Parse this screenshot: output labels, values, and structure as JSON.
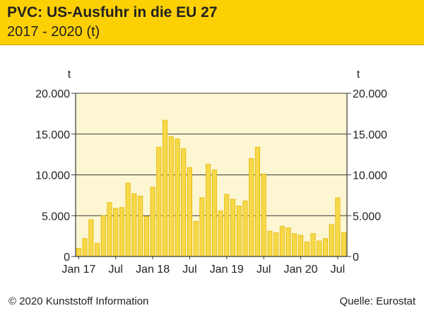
{
  "header": {
    "title": "PVC: US-Ausfuhr in die EU 27",
    "subtitle": "2017 - 2020 (t)"
  },
  "footer": {
    "copyright": "© 2020 Kunststoff Information",
    "source": "Quelle: Eurostat"
  },
  "colors": {
    "header_bg": "#fcd003",
    "plot_bg": "#fdf6d2",
    "bar_fill": "#f7d84a",
    "bar_stroke": "#e2b800"
  },
  "chart_data": {
    "type": "bar",
    "title": "PVC: US-Ausfuhr in die EU 27",
    "subtitle": "2017 - 2020 (t)",
    "ylabel_left": "t",
    "ylabel_right": "t",
    "ylim": [
      0,
      20000
    ],
    "yticks": [
      0,
      5000,
      10000,
      15000,
      20000
    ],
    "ytick_labels": [
      "0",
      "5.000",
      "10.000",
      "15.000",
      "20.000"
    ],
    "xtick_labels": [
      "Jan 17",
      "Jul",
      "Jan 18",
      "Jul",
      "Jan 19",
      "Jul",
      "Jan 20",
      "Jul"
    ],
    "grid": true,
    "categories": [
      "Jan 17",
      "Feb 17",
      "Mar 17",
      "Apr 17",
      "May 17",
      "Jun 17",
      "Jul 17",
      "Aug 17",
      "Sep 17",
      "Oct 17",
      "Nov 17",
      "Dec 17",
      "Jan 18",
      "Feb 18",
      "Mar 18",
      "Apr 18",
      "May 18",
      "Jun 18",
      "Jul 18",
      "Aug 18",
      "Sep 18",
      "Oct 18",
      "Nov 18",
      "Dec 18",
      "Jan 19",
      "Feb 19",
      "Mar 19",
      "Apr 19",
      "May 19",
      "Jun 19",
      "Jul 19",
      "Aug 19",
      "Sep 19",
      "Oct 19",
      "Nov 19",
      "Dec 19",
      "Jan 20",
      "Feb 20",
      "Mar 20",
      "Apr 20",
      "May 20",
      "Jun 20",
      "Jul 20",
      "Aug 20"
    ],
    "values": [
      1000,
      2200,
      4500,
      1600,
      5000,
      6600,
      5900,
      6000,
      9000,
      7700,
      7400,
      4900,
      8500,
      13400,
      16700,
      14700,
      14400,
      13200,
      10900,
      4300,
      7200,
      11300,
      10600,
      5600,
      7600,
      7000,
      6200,
      6800,
      12000,
      13400,
      10100,
      3100,
      2900,
      3700,
      3500,
      2800,
      2600,
      1800,
      2800,
      1900,
      2200,
      3900,
      7200,
      2900
    ]
  }
}
